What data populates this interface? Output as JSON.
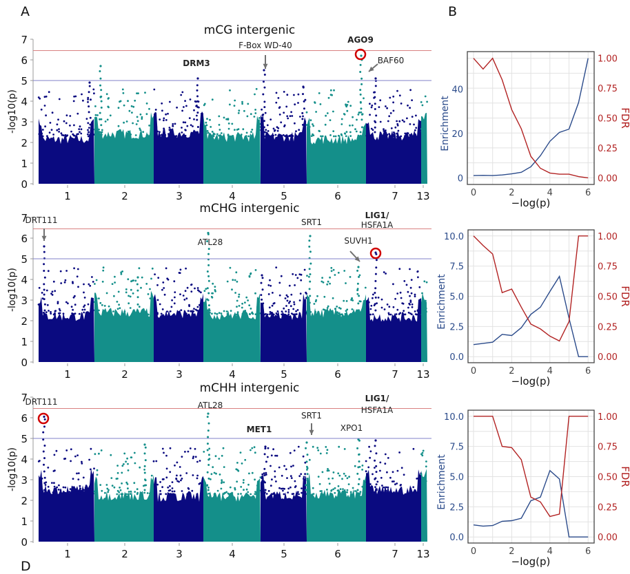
{
  "panel_labels": {
    "a": "A",
    "b": "B",
    "d": "D"
  },
  "colors": {
    "navy": "#0a0a80",
    "teal": "#148f8a",
    "red_line": "#d98080",
    "blue_line": "#8080c8",
    "enrichment": "#2a4a8a",
    "fdr": "#b22222",
    "circle": "#d00000",
    "arrow": "#707070"
  },
  "chart_data": [
    {
      "type": "scatter",
      "subtype": "manhattan",
      "title": "mCG intergenic",
      "ylabel": "-log10(p)",
      "ylim": [
        0,
        7
      ],
      "yticks": [
        "0",
        "1",
        "2",
        "3",
        "4",
        "5",
        "6",
        "7"
      ],
      "xticks": [
        "1",
        "2",
        "3",
        "4",
        "5",
        "6",
        "7",
        "13"
      ],
      "thresholds": [
        6.45,
        5
      ],
      "peaks": [
        {
          "chr": "1",
          "value": 4.9
        },
        {
          "chr": "2",
          "value": 5.7
        },
        {
          "chr": "3",
          "value": 5.1
        },
        {
          "chr": "4",
          "value": 5.5
        },
        {
          "chr": "5",
          "value": 4.7
        },
        {
          "chr": "6",
          "value": 6.2
        },
        {
          "chr": "7",
          "value": 5.1
        }
      ],
      "annotations": [
        {
          "text": "DRM3",
          "bold": true
        },
        {
          "text": "F-Box  WD-40",
          "bold": false,
          "arrow": true
        },
        {
          "text": "AGO9",
          "bold": true,
          "circled": true
        },
        {
          "text": "BAF60",
          "bold": false,
          "arrow": true
        }
      ]
    },
    {
      "type": "scatter",
      "subtype": "manhattan",
      "title": "mCHG intergenic",
      "ylabel": "-log10(p)",
      "ylim": [
        0,
        7
      ],
      "yticks": [
        "0",
        "1",
        "2",
        "3",
        "4",
        "5",
        "6",
        "7"
      ],
      "xticks": [
        "1",
        "2",
        "3",
        "4",
        "5",
        "6",
        "7",
        "13"
      ],
      "thresholds": [
        6.45,
        5
      ],
      "peaks": [
        {
          "chr": "1",
          "value": 5.6
        },
        {
          "chr": "2",
          "value": 4.1
        },
        {
          "chr": "3",
          "value": 6.25
        },
        {
          "chr": "4",
          "value": 4.2
        },
        {
          "chr": "5",
          "value": 6.1
        },
        {
          "chr": "6",
          "value": 4.6
        },
        {
          "chr": "7",
          "value": 5.3
        }
      ],
      "annotations": [
        {
          "text": "DRT111",
          "bold": false,
          "arrow": true
        },
        {
          "text": "ATL28",
          "bold": false
        },
        {
          "text": "SRT1",
          "bold": false
        },
        {
          "text": "SUVH1",
          "bold": false,
          "arrow": true
        },
        {
          "text": "LIG1/",
          "bold": true,
          "circled": true
        },
        {
          "text": "HSFA1A",
          "bold": false
        }
      ]
    },
    {
      "type": "scatter",
      "subtype": "manhattan",
      "title": "mCHH intergenic",
      "ylabel": "-log10(p)",
      "ylim": [
        0,
        7
      ],
      "yticks": [
        "0",
        "1",
        "2",
        "3",
        "4",
        "5",
        "6",
        "7"
      ],
      "xticks": [
        "1",
        "2",
        "3",
        "4",
        "5",
        "6",
        "7",
        "13"
      ],
      "thresholds": [
        6.45,
        5
      ],
      "peaks": [
        {
          "chr": "1",
          "value": 6.05
        },
        {
          "chr": "2",
          "value": 4.7
        },
        {
          "chr": "3",
          "value": 6.2
        },
        {
          "chr": "4",
          "value": 4.6
        },
        {
          "chr": "5",
          "value": 4.8
        },
        {
          "chr": "6",
          "value": 4.95
        },
        {
          "chr": "7",
          "value": 4.9
        }
      ],
      "annotations": [
        {
          "text": "DRT111",
          "bold": false,
          "circled": true
        },
        {
          "text": "ATL28",
          "bold": false
        },
        {
          "text": "MET1",
          "bold": true
        },
        {
          "text": "SRT1",
          "bold": false,
          "arrow": true
        },
        {
          "text": "XPO1",
          "bold": false
        },
        {
          "text": "LIG1/",
          "bold": true
        },
        {
          "text": "HSFA1A",
          "bold": false
        }
      ]
    },
    {
      "type": "line",
      "xlabel": "−log(p)",
      "ylabel": "Enrichment",
      "y2label": "FDR",
      "x": [
        0,
        0.5,
        1,
        1.5,
        2,
        2.5,
        3,
        3.5,
        4,
        4.5,
        5,
        5.5,
        6
      ],
      "xticks": [
        "0",
        "2",
        "4",
        "6"
      ],
      "yticks": [
        "0",
        "20",
        "40"
      ],
      "y2ticks": [
        "0.00",
        "0.25",
        "0.50",
        "0.75",
        "1.00"
      ],
      "ylim": [
        -3,
        57
      ],
      "series": [
        {
          "name": "Enrichment",
          "axis": "left",
          "values": [
            1,
            1.1,
            1,
            1.3,
            1.8,
            2.5,
            5,
            10,
            16.5,
            20.5,
            22,
            34,
            54
          ]
        },
        {
          "name": "FDR",
          "axis": "right",
          "values": [
            1.0,
            0.91,
            1.0,
            0.82,
            0.57,
            0.41,
            0.18,
            0.08,
            0.04,
            0.03,
            0.03,
            0.01,
            0.0
          ]
        }
      ]
    },
    {
      "type": "line",
      "xlabel": "−log(p)",
      "ylabel": "Enrichment",
      "y2label": "FDR",
      "x": [
        0,
        0.5,
        1,
        1.5,
        2,
        2.5,
        3,
        3.5,
        4,
        4.5,
        5,
        5.5,
        6
      ],
      "xticks": [
        "0",
        "2",
        "4",
        "6"
      ],
      "yticks": [
        "0.0",
        "2.5",
        "5.0",
        "7.5",
        "10.0"
      ],
      "y2ticks": [
        "0.00",
        "0.25",
        "0.50",
        "0.75",
        "1.00"
      ],
      "ylim": [
        -0.5,
        10.5
      ],
      "series": [
        {
          "name": "Enrichment",
          "axis": "left",
          "values": [
            1,
            1.1,
            1.2,
            1.85,
            1.75,
            2.4,
            3.5,
            4.1,
            5.4,
            6.65,
            3.2,
            0,
            0
          ]
        },
        {
          "name": "FDR",
          "axis": "right",
          "values": [
            1.0,
            0.92,
            0.85,
            0.53,
            0.56,
            0.41,
            0.27,
            0.23,
            0.17,
            0.13,
            0.29,
            1.0,
            1.0
          ]
        }
      ]
    },
    {
      "type": "line",
      "xlabel": "−log(p)",
      "ylabel": "Enrichment",
      "y2label": "FDR",
      "x": [
        0,
        0.5,
        1,
        1.5,
        2,
        2.5,
        3,
        3.5,
        4,
        4.5,
        5,
        5.5,
        6
      ],
      "xticks": [
        "0",
        "2",
        "4",
        "6"
      ],
      "yticks": [
        "0.0",
        "2.5",
        "5.0",
        "7.5",
        "10.0"
      ],
      "y2ticks": [
        "0.00",
        "0.25",
        "0.50",
        "0.75",
        "1.00"
      ],
      "ylim": [
        -0.5,
        10.5
      ],
      "series": [
        {
          "name": "Enrichment",
          "axis": "left",
          "values": [
            1,
            0.9,
            0.95,
            1.3,
            1.35,
            1.55,
            3.0,
            3.3,
            5.5,
            4.8,
            0,
            0,
            0
          ]
        },
        {
          "name": "FDR",
          "axis": "right",
          "values": [
            1,
            1,
            1,
            0.75,
            0.74,
            0.64,
            0.33,
            0.29,
            0.17,
            0.19,
            1,
            1,
            1
          ]
        }
      ]
    }
  ]
}
